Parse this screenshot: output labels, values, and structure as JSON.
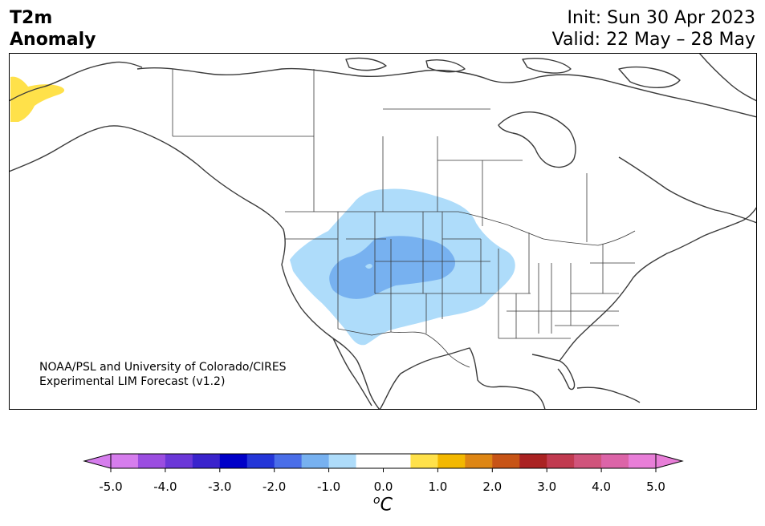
{
  "header": {
    "variable": "T2m",
    "field": "Anomaly",
    "init": "Init: Sun 30 Apr 2023",
    "valid": "Valid: 22 May – 28 May"
  },
  "credit": {
    "line1": "NOAA/PSL and University of Colorado/CIRES",
    "line2": "Experimental LIM Forecast (v1.2)"
  },
  "colorbar": {
    "unit_prefix": "o",
    "unit": "C",
    "ticks": [
      "-5.0",
      "-4.0",
      "-3.0",
      "-2.0",
      "-1.0",
      "0.0",
      "1.0",
      "2.0",
      "3.0",
      "4.0",
      "5.0"
    ],
    "colors": [
      "#d67ded",
      "#9b4de0",
      "#6b37d8",
      "#3a23cc",
      "#0000c8",
      "#2436d8",
      "#4a6ee8",
      "#77b1f0",
      "#aedcfa",
      "#ffffff",
      "#ffffff",
      "#ffe14a",
      "#f3b800",
      "#de8614",
      "#c75416",
      "#aa2222",
      "#c13a50",
      "#d0547c",
      "#dc64a8",
      "#e87ed8"
    ],
    "under_color": "#d67ded",
    "over_color": "#e87ed8"
  },
  "map": {
    "anomaly_colors": {
      "light_blue": "#aedcfa",
      "medium_blue": "#77b1f0",
      "yellow": "#ffe14a"
    }
  }
}
